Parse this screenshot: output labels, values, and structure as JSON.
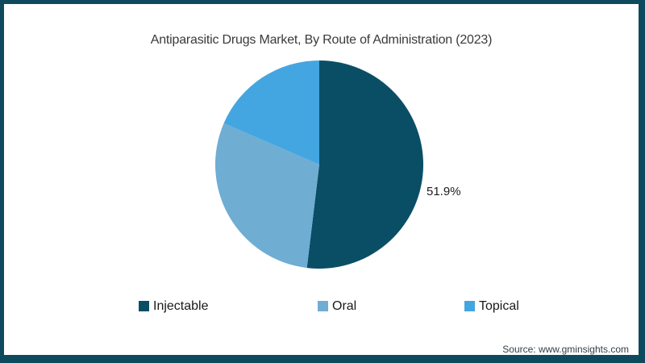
{
  "frame": {
    "border_color": "#0E4A5E",
    "background": "#FFFFFF"
  },
  "title": "Antiparasitic Drugs Market, By Route of Administration (2023)",
  "chart_data": {
    "type": "pie",
    "title": "Antiparasitic Drugs Market, By Route of Administration (2023)",
    "direction": "clockwise",
    "start_angle_deg": 0,
    "legend_position": "bottom",
    "slices": [
      {
        "label": "Injectable",
        "value": 51.9,
        "color": "#0A4E66",
        "displayed_label": "51.9%"
      },
      {
        "label": "Oral",
        "value": 29.6,
        "color": "#6FADD3",
        "displayed_label": ""
      },
      {
        "label": "Topical",
        "value": 18.5,
        "color": "#44A6E0",
        "displayed_label": ""
      }
    ]
  },
  "labels": {
    "injectable_pct": "51.9%"
  },
  "legend": {
    "items": [
      {
        "label": "Injectable",
        "color": "#0A4E66"
      },
      {
        "label": "Oral",
        "color": "#6FADD3"
      },
      {
        "label": "Topical",
        "color": "#44A6E0"
      }
    ]
  },
  "source": {
    "text": "Source: www.gminsights.com"
  }
}
